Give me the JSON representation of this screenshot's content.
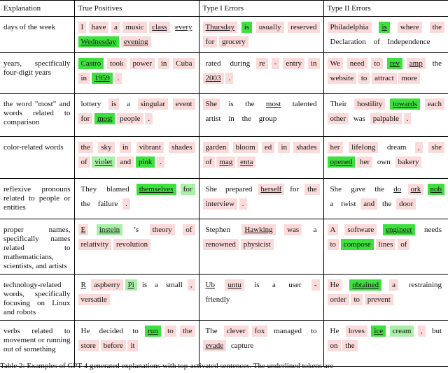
{
  "table": {
    "header": [
      "Explanation",
      "True Positives",
      "Type I Errors",
      "Type II Errors"
    ],
    "colors": {
      "p": "#fbdada",
      "G": "#3ee03e",
      "g": "#a8efa8"
    },
    "rows": [
      {
        "explanation": "days of the week",
        "cells": [
          [
            {
              "t": "I",
              "c": "p"
            },
            {
              "t": "have",
              "c": "p"
            },
            {
              "t": "a",
              "c": "p"
            },
            {
              "t": "music",
              "c": "p"
            },
            {
              "t": "class",
              "c": "p",
              "u": true
            },
            {
              "t": "every",
              "u": true
            },
            {
              "t": "Wednesday",
              "c": "G",
              "u": true
            },
            {
              "t": "evening",
              "c": "p",
              "u": true
            }
          ],
          [
            {
              "t": "Thursday",
              "c": "p",
              "u": true
            },
            {
              "t": "is",
              "c": "G"
            },
            {
              "t": "usually",
              "c": "p"
            },
            {
              "t": "reserved",
              "c": "p"
            },
            {
              "t": "for",
              "c": "p"
            },
            {
              "t": "grocery",
              "c": "p"
            }
          ],
          [
            {
              "t": "Philadelphia",
              "c": "p"
            },
            {
              "t": "is",
              "c": "G",
              "u": true
            },
            {
              "t": "where",
              "c": "p"
            },
            {
              "t": "the",
              "c": "p"
            },
            {
              "t": "Declaration"
            },
            {
              "t": "of"
            },
            {
              "t": "Independence"
            }
          ]
        ]
      },
      {
        "explanation": "years, specifically four-digit years",
        "cells": [
          [
            {
              "t": "Castro",
              "c": "G"
            },
            {
              "t": "took",
              "c": "p"
            },
            {
              "t": "power",
              "c": "p"
            },
            {
              "t": "in",
              "c": "p"
            },
            {
              "t": "Cuba",
              "c": "p"
            },
            {
              "t": "in",
              "c": "p"
            },
            {
              "t": "1959",
              "c": "G",
              "u": true
            },
            {
              "t": ".",
              "c": "p"
            }
          ],
          [
            {
              "t": "rated"
            },
            {
              "t": "during"
            },
            {
              "t": "re",
              "c": "p"
            },
            {
              "t": "-",
              "c": "p"
            },
            {
              "t": "entry",
              "c": "p"
            },
            {
              "t": "in",
              "c": "p"
            },
            {
              "t": "2003",
              "c": "p",
              "u": true
            },
            {
              "t": ".",
              "c": "p"
            }
          ],
          [
            {
              "t": "We",
              "c": "p"
            },
            {
              "t": "need",
              "c": "p"
            },
            {
              "t": "to",
              "c": "p"
            },
            {
              "t": "rev",
              "c": "G",
              "u": true
            },
            {
              "t": "amp",
              "c": "p",
              "u": true
            },
            {
              "t": "the"
            },
            {
              "t": "website",
              "c": "p"
            },
            {
              "t": "to",
              "c": "p"
            },
            {
              "t": "attract",
              "c": "p"
            },
            {
              "t": "more",
              "c": "p"
            }
          ]
        ]
      },
      {
        "explanation": "the word \"most\" and words related to comparison",
        "cells": [
          [
            {
              "t": "lottery"
            },
            {
              "t": "is",
              "c": "p"
            },
            {
              "t": "a"
            },
            {
              "t": "singular",
              "c": "p"
            },
            {
              "t": "event",
              "c": "p"
            },
            {
              "t": "for",
              "c": "p"
            },
            {
              "t": "most",
              "c": "G",
              "u": true
            },
            {
              "t": "people",
              "c": "p"
            },
            {
              "t": ".",
              "c": "p"
            }
          ],
          [
            {
              "t": "She",
              "c": "p"
            },
            {
              "t": "is"
            },
            {
              "t": "the"
            },
            {
              "t": "most",
              "u": true
            },
            {
              "t": "talented"
            },
            {
              "t": "artist"
            },
            {
              "t": "in"
            },
            {
              "t": "the"
            },
            {
              "t": "group"
            }
          ],
          [
            {
              "t": "Their"
            },
            {
              "t": "hostility",
              "c": "p"
            },
            {
              "t": "towards",
              "c": "G",
              "u": true
            },
            {
              "t": "each",
              "c": "p"
            },
            {
              "t": "other",
              "c": "p"
            },
            {
              "t": "was"
            },
            {
              "t": "palpable",
              "c": "p"
            },
            {
              "t": ".",
              "c": "p"
            }
          ]
        ]
      },
      {
        "explanation": "color-related words",
        "cells": [
          [
            {
              "t": "the",
              "c": "p"
            },
            {
              "t": "sky",
              "c": "p"
            },
            {
              "t": "in",
              "c": "p"
            },
            {
              "t": "vibrant",
              "c": "p"
            },
            {
              "t": "shades",
              "c": "p"
            },
            {
              "t": "of",
              "c": "p"
            },
            {
              "t": "violet",
              "c": "g",
              "u": true
            },
            {
              "t": "and",
              "c": "p"
            },
            {
              "t": "pink",
              "c": "G"
            },
            {
              "t": ".",
              "c": "p"
            }
          ],
          [
            {
              "t": "garden",
              "c": "p"
            },
            {
              "t": "bloom",
              "c": "p"
            },
            {
              "t": "ed",
              "c": "p"
            },
            {
              "t": "in",
              "c": "p"
            },
            {
              "t": "shades",
              "c": "p"
            },
            {
              "t": "of",
              "c": "p"
            },
            {
              "t": "mag",
              "c": "p",
              "u": true
            },
            {
              "t": "enta",
              "c": "p",
              "u": true
            }
          ],
          [
            {
              "t": "her",
              "c": "p"
            },
            {
              "t": "lifelong",
              "c": "p"
            },
            {
              "t": "dream"
            },
            {
              "t": ",",
              "c": "p"
            },
            {
              "t": "she",
              "c": "p"
            },
            {
              "t": "opened",
              "c": "G",
              "u": true
            },
            {
              "t": "her",
              "c": "p"
            },
            {
              "t": "own"
            },
            {
              "t": "bakery",
              "c": "p"
            }
          ]
        ]
      },
      {
        "explanation": "reflexive pronouns related to people or entities",
        "cells": [
          [
            {
              "t": "They"
            },
            {
              "t": "blamed"
            },
            {
              "t": "themselves",
              "c": "G",
              "u": true
            },
            {
              "t": "for",
              "c": "g"
            },
            {
              "t": "the"
            },
            {
              "t": "failure"
            },
            {
              "t": ".",
              "c": "p"
            }
          ],
          [
            {
              "t": "She"
            },
            {
              "t": "prepared"
            },
            {
              "t": "herself",
              "c": "p",
              "u": true
            },
            {
              "t": "for"
            },
            {
              "t": "the",
              "c": "p"
            },
            {
              "t": "interview",
              "c": "p"
            },
            {
              "t": ".",
              "c": "p"
            }
          ],
          [
            {
              "t": "She"
            },
            {
              "t": "gave"
            },
            {
              "t": "the"
            },
            {
              "t": "do",
              "u": true
            },
            {
              "t": "ork",
              "c": "p",
              "u": true
            },
            {
              "t": "nob",
              "c": "G",
              "u": true
            },
            {
              "t": "a"
            },
            {
              "t": "twist"
            },
            {
              "t": "and",
              "c": "p"
            },
            {
              "t": "the"
            },
            {
              "t": "door",
              "c": "p"
            }
          ]
        ]
      },
      {
        "explanation": "proper names, specifically names related to mathematicians, scientists, and artists",
        "cells": [
          [
            {
              "t": "E",
              "c": "p",
              "u": true
            },
            {
              "t": "instein",
              "c": "g",
              "u": true
            },
            {
              "t": "’s"
            },
            {
              "t": "theory",
              "c": "p"
            },
            {
              "t": "of",
              "c": "p"
            },
            {
              "t": "relativity",
              "c": "p"
            },
            {
              "t": "revolution",
              "c": "p"
            }
          ],
          [
            {
              "t": "Stephen"
            },
            {
              "t": "Hawking",
              "c": "p",
              "u": true
            },
            {
              "t": "was",
              "c": "p"
            },
            {
              "t": "a"
            },
            {
              "t": "renowned",
              "c": "p"
            },
            {
              "t": "physicist",
              "c": "p"
            }
          ],
          [
            {
              "t": "A",
              "c": "p"
            },
            {
              "t": "software",
              "c": "p"
            },
            {
              "t": "engineer",
              "c": "G",
              "u": true
            },
            {
              "t": "needs"
            },
            {
              "t": "to",
              "c": "p"
            },
            {
              "t": "compose",
              "c": "G"
            },
            {
              "t": "lines",
              "c": "p"
            },
            {
              "t": "of",
              "c": "p"
            }
          ]
        ]
      },
      {
        "explanation": "technology-related words, specifically focusing on Linux and robots",
        "cells": [
          [
            {
              "t": "R",
              "u": true
            },
            {
              "t": "aspberry",
              "c": "p"
            },
            {
              "t": "Pi",
              "c": "g",
              "u": true
            },
            {
              "t": "is"
            },
            {
              "t": "a"
            },
            {
              "t": "small"
            },
            {
              "t": ",",
              "c": "p"
            },
            {
              "t": "versatile",
              "c": "p"
            }
          ],
          [
            {
              "t": "Ub",
              "u": true
            },
            {
              "t": "untu",
              "c": "p",
              "u": true
            },
            {
              "t": "is"
            },
            {
              "t": "a"
            },
            {
              "t": "user"
            },
            {
              "t": "-",
              "c": "p"
            },
            {
              "t": "friendly"
            }
          ],
          [
            {
              "t": "He",
              "c": "p"
            },
            {
              "t": "obtained",
              "c": "G",
              "u": true
            },
            {
              "t": "a",
              "c": "p"
            },
            {
              "t": "restraining"
            },
            {
              "t": "order",
              "c": "p"
            },
            {
              "t": "to",
              "c": "p"
            },
            {
              "t": "prevent",
              "c": "p"
            }
          ]
        ]
      },
      {
        "explanation": "verbs related to movement or running out of something",
        "cells": [
          [
            {
              "t": "He"
            },
            {
              "t": "decided"
            },
            {
              "t": "to"
            },
            {
              "t": "run",
              "c": "G",
              "u": true
            },
            {
              "t": "to",
              "c": "p"
            },
            {
              "t": "the",
              "c": "p"
            },
            {
              "t": "store",
              "c": "p"
            },
            {
              "t": "before",
              "c": "p"
            },
            {
              "t": "it",
              "c": "p"
            }
          ],
          [
            {
              "t": "The"
            },
            {
              "t": "clever",
              "c": "p"
            },
            {
              "t": "fox",
              "c": "p"
            },
            {
              "t": "managed"
            },
            {
              "t": "to"
            },
            {
              "t": "evade",
              "c": "p",
              "u": true
            },
            {
              "t": "capture"
            }
          ],
          [
            {
              "t": "He"
            },
            {
              "t": "loves",
              "c": "p"
            },
            {
              "t": "ice",
              "c": "G",
              "u": true
            },
            {
              "t": "cream",
              "c": "g"
            },
            {
              "t": ",",
              "c": "p"
            },
            {
              "t": "but"
            },
            {
              "t": "on",
              "c": "p"
            },
            {
              "t": "the",
              "c": "p"
            }
          ]
        ]
      }
    ],
    "caption": "Table 2: Examples of GPT-4 generated explanations with top-activated sentences. The underlined tokens are"
  }
}
